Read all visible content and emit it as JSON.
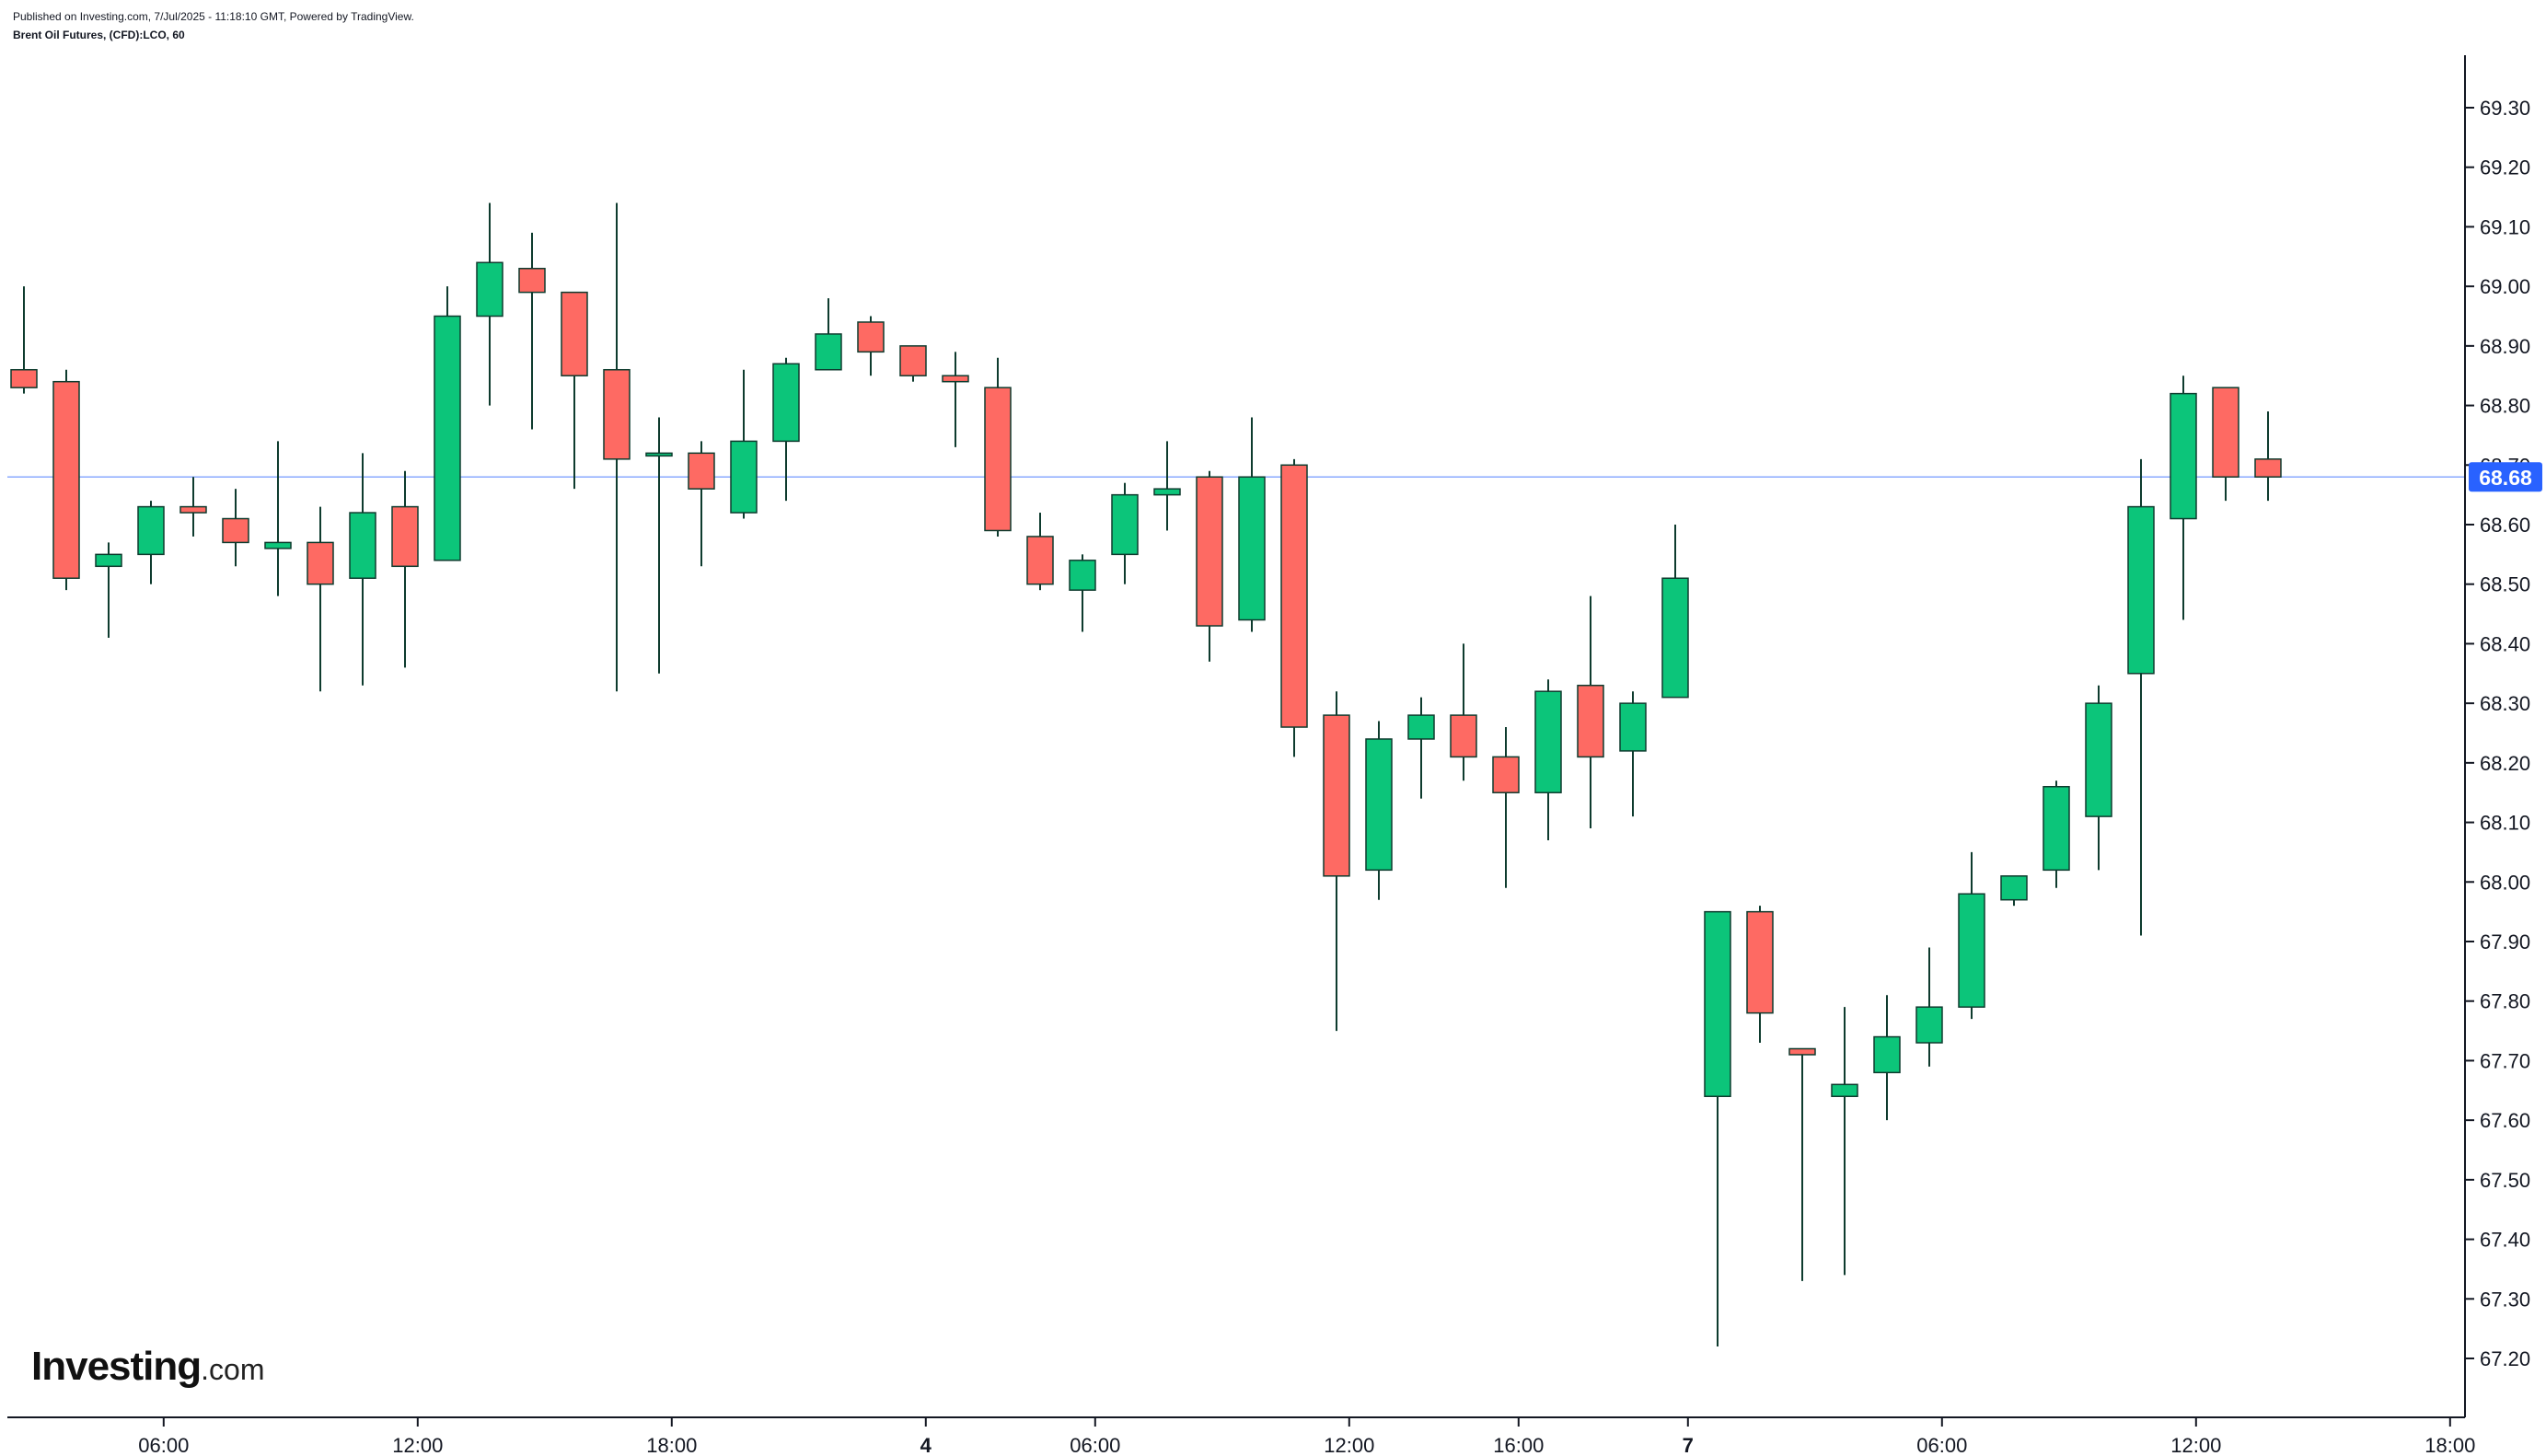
{
  "header": {
    "published": "Published on Investing.com, 7/Jul/2025 - 11:18:10 GMT, Powered by TradingView.",
    "instrument": "Brent Oil Futures, (CFD):LCO, 60"
  },
  "logo": {
    "brand": "Investing",
    "suffix": ".com"
  },
  "colors": {
    "up": "#0cc57a",
    "down": "#fe6a63",
    "wick": "#0e3b2e",
    "last_price_line": "#2962ff",
    "last_price_label_bg": "#2962ff",
    "axis": "#131722"
  },
  "chart_data": {
    "type": "candlestick",
    "title": "Brent Oil Futures, (CFD):LCO, 60",
    "y_ticks": [
      "67.20",
      "67.30",
      "67.40",
      "67.50",
      "67.60",
      "67.70",
      "67.80",
      "67.90",
      "68.00",
      "68.10",
      "68.20",
      "68.30",
      "68.40",
      "68.50",
      "68.60",
      "68.70",
      "68.80",
      "68.90",
      "69.00",
      "69.10",
      "69.20",
      "69.30"
    ],
    "ylim": [
      67.12,
      69.4
    ],
    "x_ticks": [
      {
        "label": "06:00",
        "bold": false,
        "slot": 3.3
      },
      {
        "label": "12:00",
        "bold": false,
        "slot": 9.3
      },
      {
        "label": "18:00",
        "bold": false,
        "slot": 15.3
      },
      {
        "label": "4",
        "bold": true,
        "slot": 21.3
      },
      {
        "label": "06:00",
        "bold": false,
        "slot": 25.3
      },
      {
        "label": "12:00",
        "bold": false,
        "slot": 31.3
      },
      {
        "label": "16:00",
        "bold": false,
        "slot": 35.3
      },
      {
        "label": "7",
        "bold": true,
        "slot": 39.3
      },
      {
        "label": "06:00",
        "bold": false,
        "slot": 45.3
      },
      {
        "label": "12:00",
        "bold": false,
        "slot": 51.3
      },
      {
        "label": "18:00",
        "bold": false,
        "slot": 57.3
      }
    ],
    "last_price": 68.68,
    "last_price_label": "68.68",
    "candles": [
      {
        "slot": 0,
        "o": 68.86,
        "h": 69.0,
        "l": 68.82,
        "c": 68.83
      },
      {
        "slot": 1,
        "o": 68.84,
        "h": 68.86,
        "l": 68.49,
        "c": 68.51
      },
      {
        "slot": 2,
        "o": 68.53,
        "h": 68.57,
        "l": 68.41,
        "c": 68.55
      },
      {
        "slot": 3,
        "o": 68.55,
        "h": 68.64,
        "l": 68.5,
        "c": 68.63
      },
      {
        "slot": 4,
        "o": 68.63,
        "h": 68.68,
        "l": 68.58,
        "c": 68.62
      },
      {
        "slot": 5,
        "o": 68.61,
        "h": 68.66,
        "l": 68.53,
        "c": 68.57
      },
      {
        "slot": 6,
        "o": 68.56,
        "h": 68.74,
        "l": 68.48,
        "c": 68.57
      },
      {
        "slot": 7,
        "o": 68.57,
        "h": 68.63,
        "l": 68.32,
        "c": 68.5
      },
      {
        "slot": 8,
        "o": 68.51,
        "h": 68.72,
        "l": 68.33,
        "c": 68.62
      },
      {
        "slot": 9,
        "o": 68.63,
        "h": 68.69,
        "l": 68.36,
        "c": 68.53
      },
      {
        "slot": 10,
        "o": 68.54,
        "h": 69.0,
        "l": 68.54,
        "c": 68.95
      },
      {
        "slot": 11,
        "o": 68.95,
        "h": 69.14,
        "l": 68.8,
        "c": 69.04
      },
      {
        "slot": 12,
        "o": 69.03,
        "h": 69.09,
        "l": 68.76,
        "c": 68.99
      },
      {
        "slot": 13,
        "o": 68.99,
        "h": 68.99,
        "l": 68.66,
        "c": 68.85
      },
      {
        "slot": 14,
        "o": 68.86,
        "h": 69.14,
        "l": 68.32,
        "c": 68.71
      },
      {
        "slot": 15,
        "o": 68.72,
        "h": 68.78,
        "l": 68.35,
        "c": 68.72
      },
      {
        "slot": 16,
        "o": 68.72,
        "h": 68.74,
        "l": 68.53,
        "c": 68.66
      },
      {
        "slot": 17,
        "o": 68.62,
        "h": 68.86,
        "l": 68.61,
        "c": 68.74
      },
      {
        "slot": 18,
        "o": 68.74,
        "h": 68.88,
        "l": 68.64,
        "c": 68.87
      },
      {
        "slot": 19,
        "o": 68.86,
        "h": 68.98,
        "l": 68.86,
        "c": 68.92
      },
      {
        "slot": 20,
        "o": 68.94,
        "h": 68.95,
        "l": 68.85,
        "c": 68.89
      },
      {
        "slot": 21,
        "o": 68.9,
        "h": 68.9,
        "l": 68.84,
        "c": 68.85
      },
      {
        "slot": 22,
        "o": 68.85,
        "h": 68.89,
        "l": 68.73,
        "c": 68.84
      },
      {
        "slot": 23,
        "o": 68.83,
        "h": 68.88,
        "l": 68.58,
        "c": 68.59
      },
      {
        "slot": 24,
        "o": 68.58,
        "h": 68.62,
        "l": 68.49,
        "c": 68.5
      },
      {
        "slot": 25,
        "o": 68.49,
        "h": 68.55,
        "l": 68.42,
        "c": 68.54
      },
      {
        "slot": 26,
        "o": 68.55,
        "h": 68.67,
        "l": 68.5,
        "c": 68.65
      },
      {
        "slot": 27,
        "o": 68.65,
        "h": 68.74,
        "l": 68.59,
        "c": 68.66
      },
      {
        "slot": 28,
        "o": 68.68,
        "h": 68.69,
        "l": 68.37,
        "c": 68.43
      },
      {
        "slot": 29,
        "o": 68.44,
        "h": 68.78,
        "l": 68.42,
        "c": 68.68
      },
      {
        "slot": 30,
        "o": 68.7,
        "h": 68.71,
        "l": 68.21,
        "c": 68.26
      },
      {
        "slot": 31,
        "o": 68.28,
        "h": 68.32,
        "l": 67.75,
        "c": 68.01
      },
      {
        "slot": 32,
        "o": 68.02,
        "h": 68.27,
        "l": 67.97,
        "c": 68.24
      },
      {
        "slot": 33,
        "o": 68.24,
        "h": 68.31,
        "l": 68.14,
        "c": 68.28
      },
      {
        "slot": 34,
        "o": 68.28,
        "h": 68.4,
        "l": 68.17,
        "c": 68.21
      },
      {
        "slot": 35,
        "o": 68.21,
        "h": 68.26,
        "l": 67.99,
        "c": 68.15
      },
      {
        "slot": 36,
        "o": 68.15,
        "h": 68.34,
        "l": 68.07,
        "c": 68.32
      },
      {
        "slot": 37,
        "o": 68.33,
        "h": 68.48,
        "l": 68.09,
        "c": 68.21
      },
      {
        "slot": 38,
        "o": 68.22,
        "h": 68.32,
        "l": 68.11,
        "c": 68.3
      },
      {
        "slot": 39,
        "o": 68.31,
        "h": 68.6,
        "l": 68.31,
        "c": 68.51
      },
      {
        "slot": 40,
        "o": 67.64,
        "h": 67.95,
        "l": 67.22,
        "c": 67.95
      },
      {
        "slot": 41,
        "o": 67.95,
        "h": 67.96,
        "l": 67.73,
        "c": 67.78
      },
      {
        "slot": 42,
        "o": 67.72,
        "h": 67.72,
        "l": 67.33,
        "c": 67.71
      },
      {
        "slot": 43,
        "o": 67.64,
        "h": 67.79,
        "l": 67.34,
        "c": 67.66
      },
      {
        "slot": 44,
        "o": 67.68,
        "h": 67.81,
        "l": 67.6,
        "c": 67.74
      },
      {
        "slot": 45,
        "o": 67.73,
        "h": 67.89,
        "l": 67.69,
        "c": 67.79
      },
      {
        "slot": 46,
        "o": 67.79,
        "h": 68.05,
        "l": 67.77,
        "c": 67.98
      },
      {
        "slot": 47,
        "o": 67.97,
        "h": 68.01,
        "l": 67.96,
        "c": 68.01
      },
      {
        "slot": 48,
        "o": 68.02,
        "h": 68.17,
        "l": 67.99,
        "c": 68.16
      },
      {
        "slot": 49,
        "o": 68.11,
        "h": 68.33,
        "l": 68.02,
        "c": 68.3
      },
      {
        "slot": 50,
        "o": 68.35,
        "h": 68.71,
        "l": 67.91,
        "c": 68.63
      },
      {
        "slot": 51,
        "o": 68.61,
        "h": 68.85,
        "l": 68.44,
        "c": 68.82
      },
      {
        "slot": 52,
        "o": 68.83,
        "h": 68.83,
        "l": 68.64,
        "c": 68.68
      },
      {
        "slot": 53,
        "o": 68.71,
        "h": 68.79,
        "l": 68.64,
        "c": 68.68
      }
    ]
  }
}
